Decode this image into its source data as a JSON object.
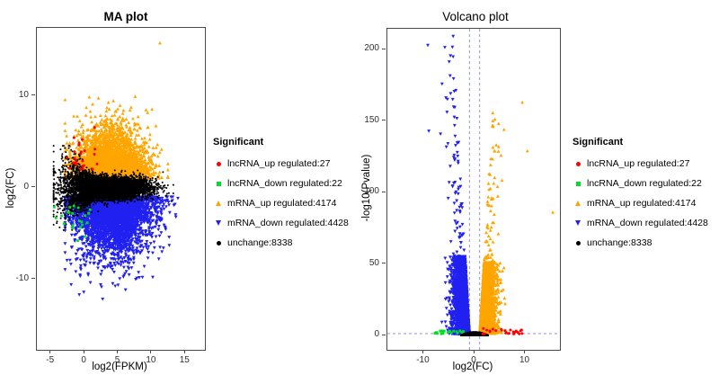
{
  "figure": {
    "background": "#ffffff"
  },
  "legend": {
    "title": "Significant",
    "items": [
      {
        "label": "lncRNA_up regulated:27",
        "count": 27,
        "color": "#FF0000",
        "marker": "circle"
      },
      {
        "label": "lncRNA_down regulated:22",
        "count": 22,
        "color": "#00DD22",
        "marker": "square"
      },
      {
        "label": "mRNA_up regulated:4174",
        "count": 4174,
        "color": "#FFA500",
        "marker": "triangle-up"
      },
      {
        "label": "mRNA_down regulated:4428",
        "count": 4428,
        "color": "#2020F0",
        "marker": "triangle-down"
      },
      {
        "label": "unchange:8338",
        "count": 8338,
        "color": "#000000",
        "marker": "circle"
      }
    ]
  },
  "chart_data": [
    {
      "type": "scatter",
      "title": "MA plot",
      "xlabel": "log2(FPKM)",
      "ylabel": "log2(FC)",
      "xlim": [
        -7.1,
        17.9
      ],
      "ylim": [
        -17.65,
        17.45
      ],
      "xticks": [
        -5,
        0,
        5,
        10,
        15
      ],
      "yticks": [
        -10,
        0,
        10
      ],
      "grid": false,
      "legend_position": "right",
      "series": [
        {
          "name": "lncRNA_up regulated",
          "count": 27,
          "color": "#FF0000",
          "marker": "circle",
          "cloud": "ma_lnc_up",
          "x_range": [
            -2.6,
            2.2
          ],
          "y_range": [
            1.9,
            7.9
          ]
        },
        {
          "name": "lncRNA_down regulated",
          "count": 22,
          "color": "#00DD22",
          "marker": "square",
          "cloud": "ma_lnc_down",
          "x_range": [
            -4.5,
            2.6
          ],
          "y_range": [
            -8.2,
            -1.9
          ]
        },
        {
          "name": "mRNA_up regulated",
          "count": 4174,
          "color": "#FFA500",
          "marker": "triangle-up",
          "cloud": "ma_up",
          "x_range": [
            -2.9,
            12.4
          ],
          "y_range": [
            0.9,
            13.4
          ],
          "outliers": [
            [
              11.2,
              15.8
            ]
          ]
        },
        {
          "name": "mRNA_down regulated",
          "count": 4428,
          "color": "#2020F0",
          "marker": "triangle-down",
          "cloud": "ma_down",
          "x_range": [
            -2.9,
            16.6
          ],
          "y_range": [
            -13.6,
            -0.9
          ]
        },
        {
          "name": "unchange",
          "count": 8338,
          "color": "#000000",
          "marker": "circle",
          "cloud": "ma_unchanged",
          "x_range": [
            -4.6,
            13.2
          ],
          "y_range": [
            -4.6,
            4.6
          ]
        }
      ]
    },
    {
      "type": "scatter",
      "title": "Volcano plot",
      "xlabel": "log2(FC)",
      "ylabel": "-log10(Pvalue)",
      "xlim": [
        -17.17,
        16.81
      ],
      "ylim": [
        -10.06,
        214.5
      ],
      "xticks": [
        -10,
        0,
        10
      ],
      "yticks": [
        0,
        50,
        100,
        150,
        200
      ],
      "grid": false,
      "legend_position": "right",
      "threshold_lines": {
        "vertical_x": [
          -1,
          1
        ],
        "horizontal_y": 1.3,
        "style": "dashed",
        "color": "#9093E8"
      },
      "series": [
        {
          "name": "lncRNA_up regulated",
          "count": 27,
          "color": "#FF0000",
          "marker": "circle",
          "cloud": "vol_lnc_up",
          "x_range": [
            1.3,
            9.5
          ],
          "y_range": [
            1,
            5
          ]
        },
        {
          "name": "lncRNA_down regulated",
          "count": 22,
          "color": "#00DD22",
          "marker": "square",
          "cloud": "vol_lnc_down",
          "x_range": [
            -8,
            -1.3
          ],
          "y_range": [
            1,
            3.5
          ]
        },
        {
          "name": "mRNA_up regulated",
          "count": 4174,
          "color": "#FFA500",
          "marker": "triangle-up",
          "cloud": "vol_up",
          "x_range": [
            1,
            14
          ],
          "y_range": [
            1.2,
            160
          ],
          "outliers": [
            [
              9.4,
              163
            ],
            [
              5.8,
              144
            ],
            [
              10.4,
              129
            ],
            [
              15.4,
              86
            ]
          ]
        },
        {
          "name": "mRNA_down regulated",
          "count": 4428,
          "color": "#2020F0",
          "marker": "triangle-down",
          "cloud": "vol_down",
          "x_range": [
            -12.9,
            -1
          ],
          "y_range": [
            1.2,
            210
          ],
          "outliers": [
            [
              -9.2,
              203
            ],
            [
              -6.4,
              176
            ],
            [
              -9.0,
              143
            ],
            [
              -6.7,
              141
            ]
          ]
        },
        {
          "name": "unchange",
          "count": 8338,
          "color": "#000000",
          "marker": "circle",
          "cloud": "vol_unchanged",
          "x_range": [
            -2.7,
            2.7
          ],
          "y_range": [
            0,
            2.3
          ]
        }
      ]
    }
  ]
}
